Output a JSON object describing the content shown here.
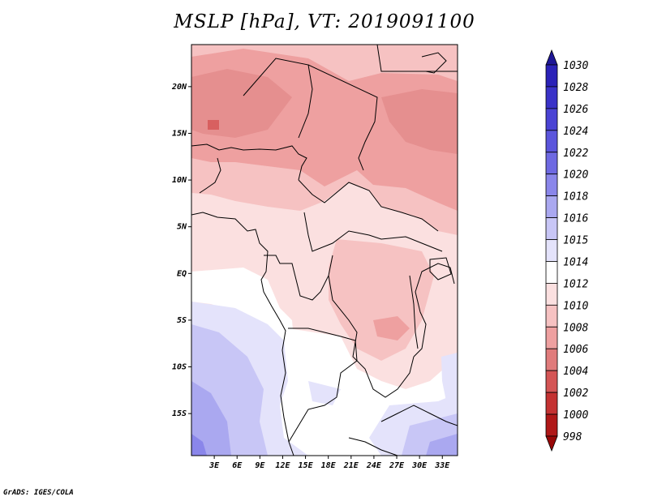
{
  "title": "MSLP [hPa], VT: 2019091100",
  "credit": "GrADS: IGES/COLA",
  "map": {
    "variable": "MSLP",
    "units": "hPa",
    "valid_time": "2019091100",
    "lon_range": [
      0,
      35
    ],
    "lat_range": [
      -19.5,
      24.5
    ],
    "lat_labels": [
      {
        "lat": 20,
        "text": "20N"
      },
      {
        "lat": 15,
        "text": "15N"
      },
      {
        "lat": 10,
        "text": "10N"
      },
      {
        "lat": 5,
        "text": "5N"
      },
      {
        "lat": 0,
        "text": "EQ"
      },
      {
        "lat": -5,
        "text": "5S"
      },
      {
        "lat": -10,
        "text": "10S"
      },
      {
        "lat": -15,
        "text": "15S"
      }
    ],
    "lon_labels": [
      {
        "lon": 3,
        "text": "3E"
      },
      {
        "lon": 6,
        "text": "6E"
      },
      {
        "lon": 9,
        "text": "9E"
      },
      {
        "lon": 12,
        "text": "12E"
      },
      {
        "lon": 15,
        "text": "15E"
      },
      {
        "lon": 18,
        "text": "18E"
      },
      {
        "lon": 21,
        "text": "21E"
      },
      {
        "lon": 24,
        "text": "24E"
      },
      {
        "lon": 27,
        "text": "27E"
      },
      {
        "lon": 30,
        "text": "30E"
      },
      {
        "lon": 33,
        "text": "33E"
      }
    ]
  },
  "colorbar": {
    "levels": [
      "1030",
      "1028",
      "1026",
      "1024",
      "1022",
      "1020",
      "1018",
      "1016",
      "1015",
      "1014",
      "1012",
      "1010",
      "1008",
      "1006",
      "1004",
      "1002",
      "1000",
      "998"
    ],
    "colors": [
      "#1e1696",
      "#2b22b8",
      "#3a32c8",
      "#4a43d4",
      "#5b55dc",
      "#6e69e2",
      "#8a86ea",
      "#aaa8f0",
      "#c8c6f6",
      "#e4e3fb",
      "#ffffff",
      "#fbe0e0",
      "#f6c2c2",
      "#eea0a0",
      "#e07b7b",
      "#d45555",
      "#c43232",
      "#b01818",
      "#980808"
    ]
  }
}
